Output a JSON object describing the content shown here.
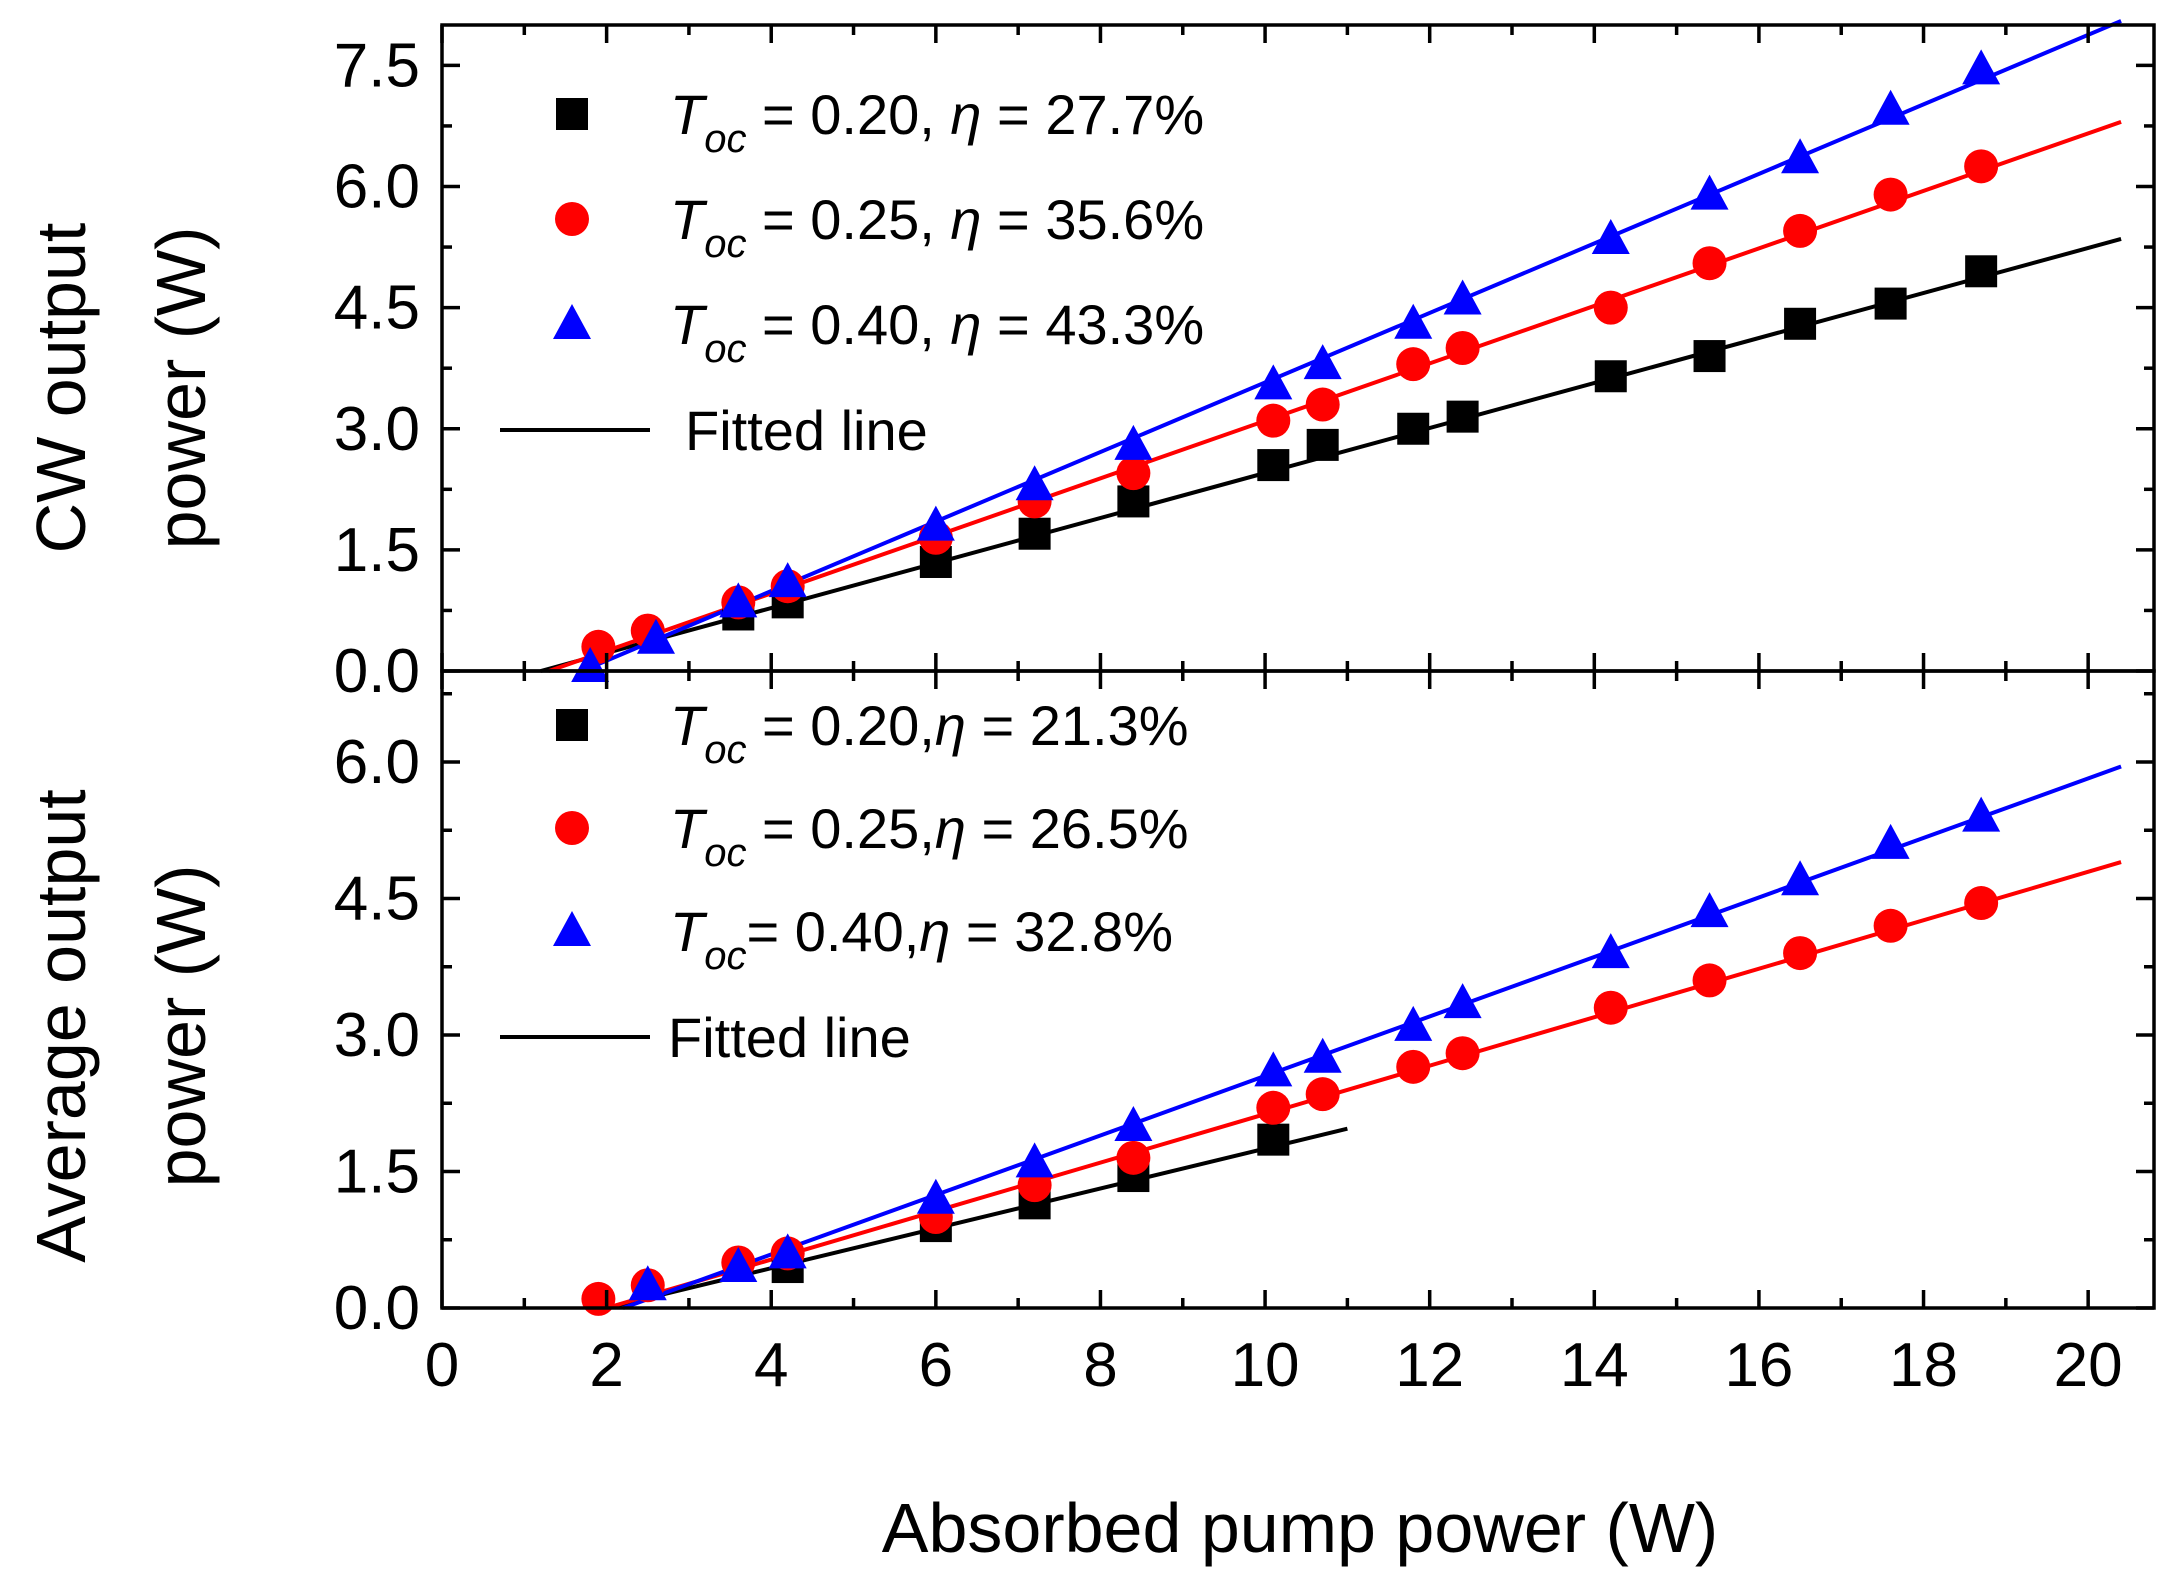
{
  "chart_data": [
    {
      "id": "top",
      "type": "scatter",
      "ylabel_line1": "CW output",
      "ylabel_line2": "power (W)",
      "xlim": [
        0,
        20.8
      ],
      "ylim": [
        0,
        8.0
      ],
      "yticks": [
        {
          "value": 0.0,
          "label": "0.0"
        },
        {
          "value": 1.5,
          "label": "1.5"
        },
        {
          "value": 3.0,
          "label": "3.0"
        },
        {
          "value": 4.5,
          "label": "4.5"
        },
        {
          "value": 6.0,
          "label": "6.0"
        },
        {
          "value": 7.5,
          "label": "7.5"
        }
      ],
      "series": [
        {
          "name": "T_oc = 0.20, η = 27.7%",
          "legend_T": "T",
          "legend_sub": "oc",
          "legend_rest": " = 0.20, ",
          "legend_eta": "η",
          "legend_tail": " = 27.7%",
          "marker": "square",
          "color": "#000000",
          "x": [
            3.6,
            4.2,
            6.0,
            7.2,
            8.4,
            10.1,
            10.7,
            11.8,
            12.4,
            14.2,
            15.4,
            16.5,
            17.6,
            18.7
          ],
          "y": [
            0.7,
            0.85,
            1.35,
            1.7,
            2.1,
            2.55,
            2.8,
            3.0,
            3.15,
            3.65,
            3.9,
            4.3,
            4.55,
            4.95
          ],
          "fit": {
            "x0": 1.2,
            "y0": 0.0,
            "x1": 20.4,
            "y1": 5.35
          }
        },
        {
          "name": "T_oc = 0.25, η = 35.6%",
          "legend_T": "T",
          "legend_sub": "oc",
          "legend_rest": " = 0.25, ",
          "legend_eta": "η",
          "legend_tail": " = 35.6%",
          "marker": "circle",
          "color": "#ff0000",
          "x": [
            1.9,
            2.5,
            3.6,
            4.2,
            6.0,
            7.2,
            8.4,
            10.1,
            10.7,
            11.8,
            12.4,
            14.2,
            15.4,
            16.5,
            17.6,
            18.7
          ],
          "y": [
            0.3,
            0.5,
            0.85,
            1.05,
            1.65,
            2.1,
            2.45,
            3.1,
            3.3,
            3.8,
            4.0,
            4.5,
            5.05,
            5.45,
            5.9,
            6.25
          ],
          "fit": {
            "x0": 1.3,
            "y0": 0.0,
            "x1": 20.4,
            "y1": 6.8
          }
        },
        {
          "name": "T_oc = 0.40, η = 43.3%",
          "legend_T": "T",
          "legend_sub": "oc",
          "legend_rest": " = 0.40, ",
          "legend_eta": "η",
          "legend_tail": " = 43.3%",
          "marker": "triangle",
          "color": "#0000ff",
          "x": [
            1.8,
            2.6,
            3.6,
            4.2,
            6.0,
            7.2,
            8.4,
            10.1,
            10.7,
            11.8,
            12.4,
            14.2,
            15.4,
            16.5,
            17.6,
            18.7
          ],
          "y": [
            0.05,
            0.4,
            0.85,
            1.1,
            1.8,
            2.3,
            2.8,
            3.55,
            3.8,
            4.3,
            4.6,
            5.35,
            5.9,
            6.35,
            6.95,
            7.45
          ],
          "fit": {
            "x0": 1.7,
            "y0": 0.0,
            "x1": 20.4,
            "y1": 8.05
          }
        }
      ],
      "legend_fit_label": "Fitted line"
    },
    {
      "id": "bottom",
      "type": "scatter",
      "ylabel_line1": "Average output",
      "ylabel_line2": "power (W)",
      "xlim": [
        0,
        20.8
      ],
      "ylim": [
        0,
        7.0
      ],
      "yticks": [
        {
          "value": 0.0,
          "label": "0.0"
        },
        {
          "value": 1.5,
          "label": "1.5"
        },
        {
          "value": 3.0,
          "label": "3.0"
        },
        {
          "value": 4.5,
          "label": "4.5"
        },
        {
          "value": 6.0,
          "label": "6.0"
        }
      ],
      "xticks": [
        {
          "value": 0,
          "label": "0"
        },
        {
          "value": 2,
          "label": "2"
        },
        {
          "value": 4,
          "label": "4"
        },
        {
          "value": 6,
          "label": "6"
        },
        {
          "value": 8,
          "label": "8"
        },
        {
          "value": 10,
          "label": "10"
        },
        {
          "value": 12,
          "label": "12"
        },
        {
          "value": 14,
          "label": "14"
        },
        {
          "value": 16,
          "label": "16"
        },
        {
          "value": 18,
          "label": "18"
        },
        {
          "value": 20,
          "label": "20"
        }
      ],
      "xlabel": "Absorbed pump power (W)",
      "series": [
        {
          "name": "T_oc = 0.20,η = 21.3%",
          "legend_T": "T",
          "legend_sub": "oc",
          "legend_rest": " = 0.20,",
          "legend_eta": "η",
          "legend_tail": " = 21.3%",
          "marker": "square",
          "color": "#000000",
          "x": [
            4.2,
            6.0,
            7.2,
            8.4,
            10.1
          ],
          "y": [
            0.45,
            0.9,
            1.15,
            1.45,
            1.85
          ],
          "fit": {
            "x0": 2.0,
            "y0": 0.0,
            "x1": 11.0,
            "y1": 1.97
          }
        },
        {
          "name": "T_oc = 0.25,η = 26.5%",
          "legend_T": "T",
          "legend_sub": "oc",
          "legend_rest": " = 0.25,",
          "legend_eta": "η",
          "legend_tail": " = 26.5%",
          "marker": "circle",
          "color": "#ff0000",
          "x": [
            1.9,
            2.5,
            3.6,
            4.2,
            6.0,
            7.2,
            8.4,
            10.1,
            10.7,
            11.8,
            12.4,
            14.2,
            15.4,
            16.5,
            17.6,
            18.7
          ],
          "y": [
            0.1,
            0.25,
            0.5,
            0.6,
            1.0,
            1.35,
            1.65,
            2.2,
            2.35,
            2.65,
            2.8,
            3.3,
            3.6,
            3.9,
            4.2,
            4.45
          ],
          "fit": {
            "x0": 2.0,
            "y0": 0.0,
            "x1": 20.4,
            "y1": 4.9
          }
        },
        {
          "name": "T_oc = 0.40,η = 32.8%",
          "legend_T": "T",
          "legend_sub": "oc",
          "legend_rest": "= 0.40,",
          "legend_eta": "η",
          "legend_tail": " = 32.8%",
          "marker": "triangle",
          "color": "#0000ff",
          "x": [
            2.5,
            3.6,
            4.2,
            6.0,
            7.2,
            8.4,
            10.1,
            10.7,
            11.8,
            12.4,
            14.2,
            15.4,
            16.5,
            17.6,
            18.7
          ],
          "y": [
            0.25,
            0.45,
            0.6,
            1.2,
            1.6,
            2.0,
            2.6,
            2.75,
            3.1,
            3.35,
            3.9,
            4.35,
            4.7,
            5.1,
            5.4
          ],
          "fit": {
            "x0": 2.2,
            "y0": 0.0,
            "x1": 20.4,
            "y1": 5.95
          }
        }
      ],
      "legend_fit_label": "Fitted line"
    }
  ]
}
